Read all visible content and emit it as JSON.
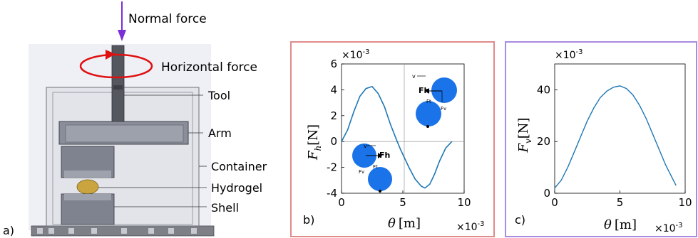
{
  "panel_a": {
    "label": "a)",
    "normal_force": "Normal force",
    "horizontal_force": "Horizontal force",
    "callouts": [
      "Tool",
      "Arm",
      "Container",
      "Hydrogel",
      "Shell"
    ]
  },
  "panel_b": {
    "label": "b)",
    "multiplier_y": "×10",
    "multiplier_y_exp": "-3",
    "multiplier_x": "×10",
    "multiplier_x_exp": "-3",
    "ylabel_main": "F",
    "ylabel_sub": "h",
    "ylabel_unit": "[N]",
    "xlabel_main": "θ",
    "xlabel_unit": "[m]",
    "inset_labels": {
      "v": "v",
      "fh": "Fh",
      "fv": "Fv",
      "ft": "Ft"
    }
  },
  "panel_c": {
    "label": "c)",
    "multiplier_y": "×10",
    "multiplier_y_exp": "-3",
    "multiplier_x": "×10",
    "multiplier_x_exp": "-3",
    "ylabel_main": "F",
    "ylabel_sub": "v",
    "ylabel_unit": "[N]",
    "xlabel_main": "θ",
    "xlabel_unit": "[m]"
  },
  "colors": {
    "arrow_purple": "#7a2fd6",
    "ellipse_red": "#e01010",
    "border_b": "#e08a8a",
    "border_c": "#a98be0",
    "curve": "#1f77b4",
    "ball": "#1a73e8"
  },
  "chart_data": [
    {
      "type": "line",
      "panel": "b",
      "xlabel": "θ [m]",
      "ylabel": "F_h [N]",
      "xlim": [
        0,
        10
      ],
      "ylim": [
        -4,
        6
      ],
      "x_ticks": [
        "0",
        "5",
        "10"
      ],
      "y_ticks": [
        "-4",
        "-2",
        "0",
        "2",
        "4",
        "6"
      ],
      "series": [
        {
          "x": [
            0,
            0.5,
            1,
            1.5,
            2,
            2.5,
            3,
            3.5,
            4,
            4.5,
            4.8,
            5.5,
            6,
            6.5,
            6.8,
            7.2,
            7.6,
            8,
            8.5,
            9
          ],
          "y": [
            0,
            0.9,
            2.3,
            3.5,
            4.1,
            4.25,
            3.7,
            2.7,
            1.3,
            0.1,
            -0.6,
            -2.0,
            -2.9,
            -3.45,
            -3.6,
            -3.3,
            -2.5,
            -1.5,
            -0.5,
            0
          ]
        }
      ]
    },
    {
      "type": "line",
      "panel": "c",
      "xlabel": "θ [m]",
      "ylabel": "F_v [N]",
      "xlim": [
        0,
        10
      ],
      "ylim": [
        0,
        50
      ],
      "x_ticks": [
        "0",
        "5",
        "10"
      ],
      "y_ticks": [
        "0",
        "20",
        "40"
      ],
      "series": [
        {
          "x": [
            0,
            0.5,
            1,
            1.5,
            2,
            2.5,
            3,
            3.5,
            4,
            4.5,
            5,
            5.5,
            6,
            6.5,
            7,
            7.5,
            8,
            8.5,
            9,
            9.3
          ],
          "y": [
            2,
            5,
            10,
            16,
            22,
            28,
            33,
            37,
            39.5,
            41,
            41.5,
            40.5,
            38,
            34,
            29,
            23,
            17,
            11,
            6,
            3
          ]
        }
      ]
    }
  ]
}
